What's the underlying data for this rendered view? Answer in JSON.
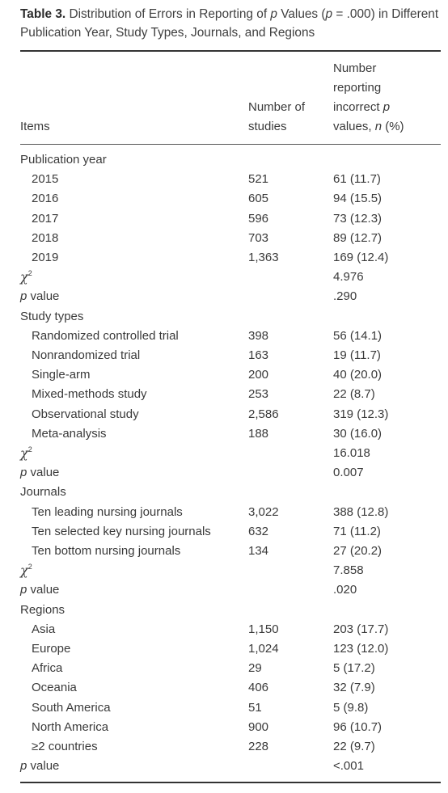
{
  "caption": {
    "label": "Table 3.",
    "text_html": "Distribution of Errors in Reporting of <i>p</i> Values (<i>p</i> = .000) in Different Publication Year, Study Types, Journals, and Regions"
  },
  "headers": {
    "items": "Items",
    "studies_html": "Number of<br>studies",
    "incorrect_html": "Number<br>reporting<br>incorrect <i>p</i><br>values, <i>n</i> (%)"
  },
  "rows": [
    {
      "type": "group",
      "label": "Publication year"
    },
    {
      "type": "sub",
      "label": "2015",
      "n": "521",
      "v": "61 (11.7)"
    },
    {
      "type": "sub",
      "label": "2016",
      "n": "605",
      "v": "94 (15.5)"
    },
    {
      "type": "sub",
      "label": "2017",
      "n": "596",
      "v": "73 (12.3)"
    },
    {
      "type": "sub",
      "label": "2018",
      "n": "703",
      "v": "89 (12.7)"
    },
    {
      "type": "sub",
      "label": "2019",
      "n": "1,363",
      "v": "169 (12.4)"
    },
    {
      "type": "chi",
      "label": "χ",
      "v": "4.976"
    },
    {
      "type": "pval",
      "label": "value",
      "v": ".290"
    },
    {
      "type": "group",
      "label": "Study types"
    },
    {
      "type": "sub",
      "label": "Randomized controlled trial",
      "n": "398",
      "v": "56 (14.1)"
    },
    {
      "type": "sub",
      "label": "Nonrandomized trial",
      "n": "163",
      "v": "19 (11.7)"
    },
    {
      "type": "sub",
      "label": "Single-arm",
      "n": "200",
      "v": "40 (20.0)"
    },
    {
      "type": "sub",
      "label": "Mixed-methods study",
      "n": "253",
      "v": "22 (8.7)"
    },
    {
      "type": "sub",
      "label": "Observational study",
      "n": "2,586",
      "v": "319 (12.3)"
    },
    {
      "type": "sub",
      "label": "Meta-analysis",
      "n": "188",
      "v": "30 (16.0)"
    },
    {
      "type": "chi",
      "label": "χ",
      "v": "16.018"
    },
    {
      "type": "pval",
      "label": "value",
      "v": "0.007"
    },
    {
      "type": "group",
      "label": "Journals"
    },
    {
      "type": "sub",
      "label": "Ten leading nursing journals",
      "n": "3,022",
      "v": "388 (12.8)"
    },
    {
      "type": "sub",
      "label": "Ten selected key nursing journals",
      "n": "632",
      "v": "71 (11.2)"
    },
    {
      "type": "sub",
      "label": "Ten bottom nursing journals",
      "n": "134",
      "v": "27 (20.2)"
    },
    {
      "type": "chi",
      "label": "χ",
      "v": "7.858"
    },
    {
      "type": "pval",
      "label": "value",
      "v": ".020"
    },
    {
      "type": "group",
      "label": "Regions"
    },
    {
      "type": "sub",
      "label": "Asia",
      "n": "1,150",
      "v": "203 (17.7)"
    },
    {
      "type": "sub",
      "label": "Europe",
      "n": "1,024",
      "v": "123 (12.0)"
    },
    {
      "type": "sub",
      "label": "Africa",
      "n": "29",
      "v": "5 (17.2)"
    },
    {
      "type": "sub",
      "label": "Oceania",
      "n": "406",
      "v": "32 (7.9)"
    },
    {
      "type": "sub",
      "label": "South America",
      "n": "51",
      "v": "5 (9.8)"
    },
    {
      "type": "sub",
      "label": "North America",
      "n": "900",
      "v": "96 (10.7)"
    },
    {
      "type": "sub",
      "label": "≥2 countries",
      "n": "228",
      "v": "22 (9.7)"
    },
    {
      "type": "pval",
      "label": "value",
      "v": "<.001"
    }
  ]
}
